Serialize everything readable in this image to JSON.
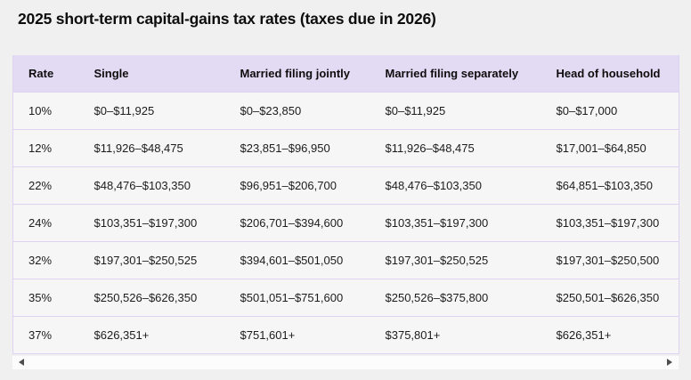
{
  "title": "2025 short-term capital-gains tax rates (taxes due in 2026)",
  "colors": {
    "header_bg": "#e3daf4",
    "table_border": "#ded3f2",
    "cell_bg": "#f6f6f6",
    "page_bg": "#f0f0f0",
    "scroll_arrow": "#4d4d4d"
  },
  "table": {
    "columns": [
      "Rate",
      "Single",
      "Married filing jointly",
      "Married filing separately",
      "Head of household"
    ],
    "rows": [
      [
        "10%",
        "$0–$11,925",
        "$0–$23,850",
        "$0–$11,925",
        "$0–$17,000"
      ],
      [
        "12%",
        "$11,926–$48,475",
        "$23,851–$96,950",
        "$11,926–$48,475",
        "$17,001–$64,850"
      ],
      [
        "22%",
        "$48,476–$103,350",
        "$96,951–$206,700",
        "$48,476–$103,350",
        "$64,851–$103,350"
      ],
      [
        "24%",
        "$103,351–$197,300",
        "$206,701–$394,600",
        "$103,351–$197,300",
        "$103,351–$197,300"
      ],
      [
        "32%",
        "$197,301–$250,525",
        "$394,601–$501,050",
        "$197,301–$250,525",
        "$197,301–$250,500"
      ],
      [
        "35%",
        "$250,526–$626,350",
        "$501,051–$751,600",
        "$250,526–$375,800",
        "$250,501–$626,350"
      ],
      [
        "37%",
        "$626,351+",
        "$751,601+",
        "$375,801+",
        "$626,351+"
      ]
    ]
  },
  "scrollbar": {
    "left_arrow": "scroll-left",
    "right_arrow": "scroll-right"
  }
}
